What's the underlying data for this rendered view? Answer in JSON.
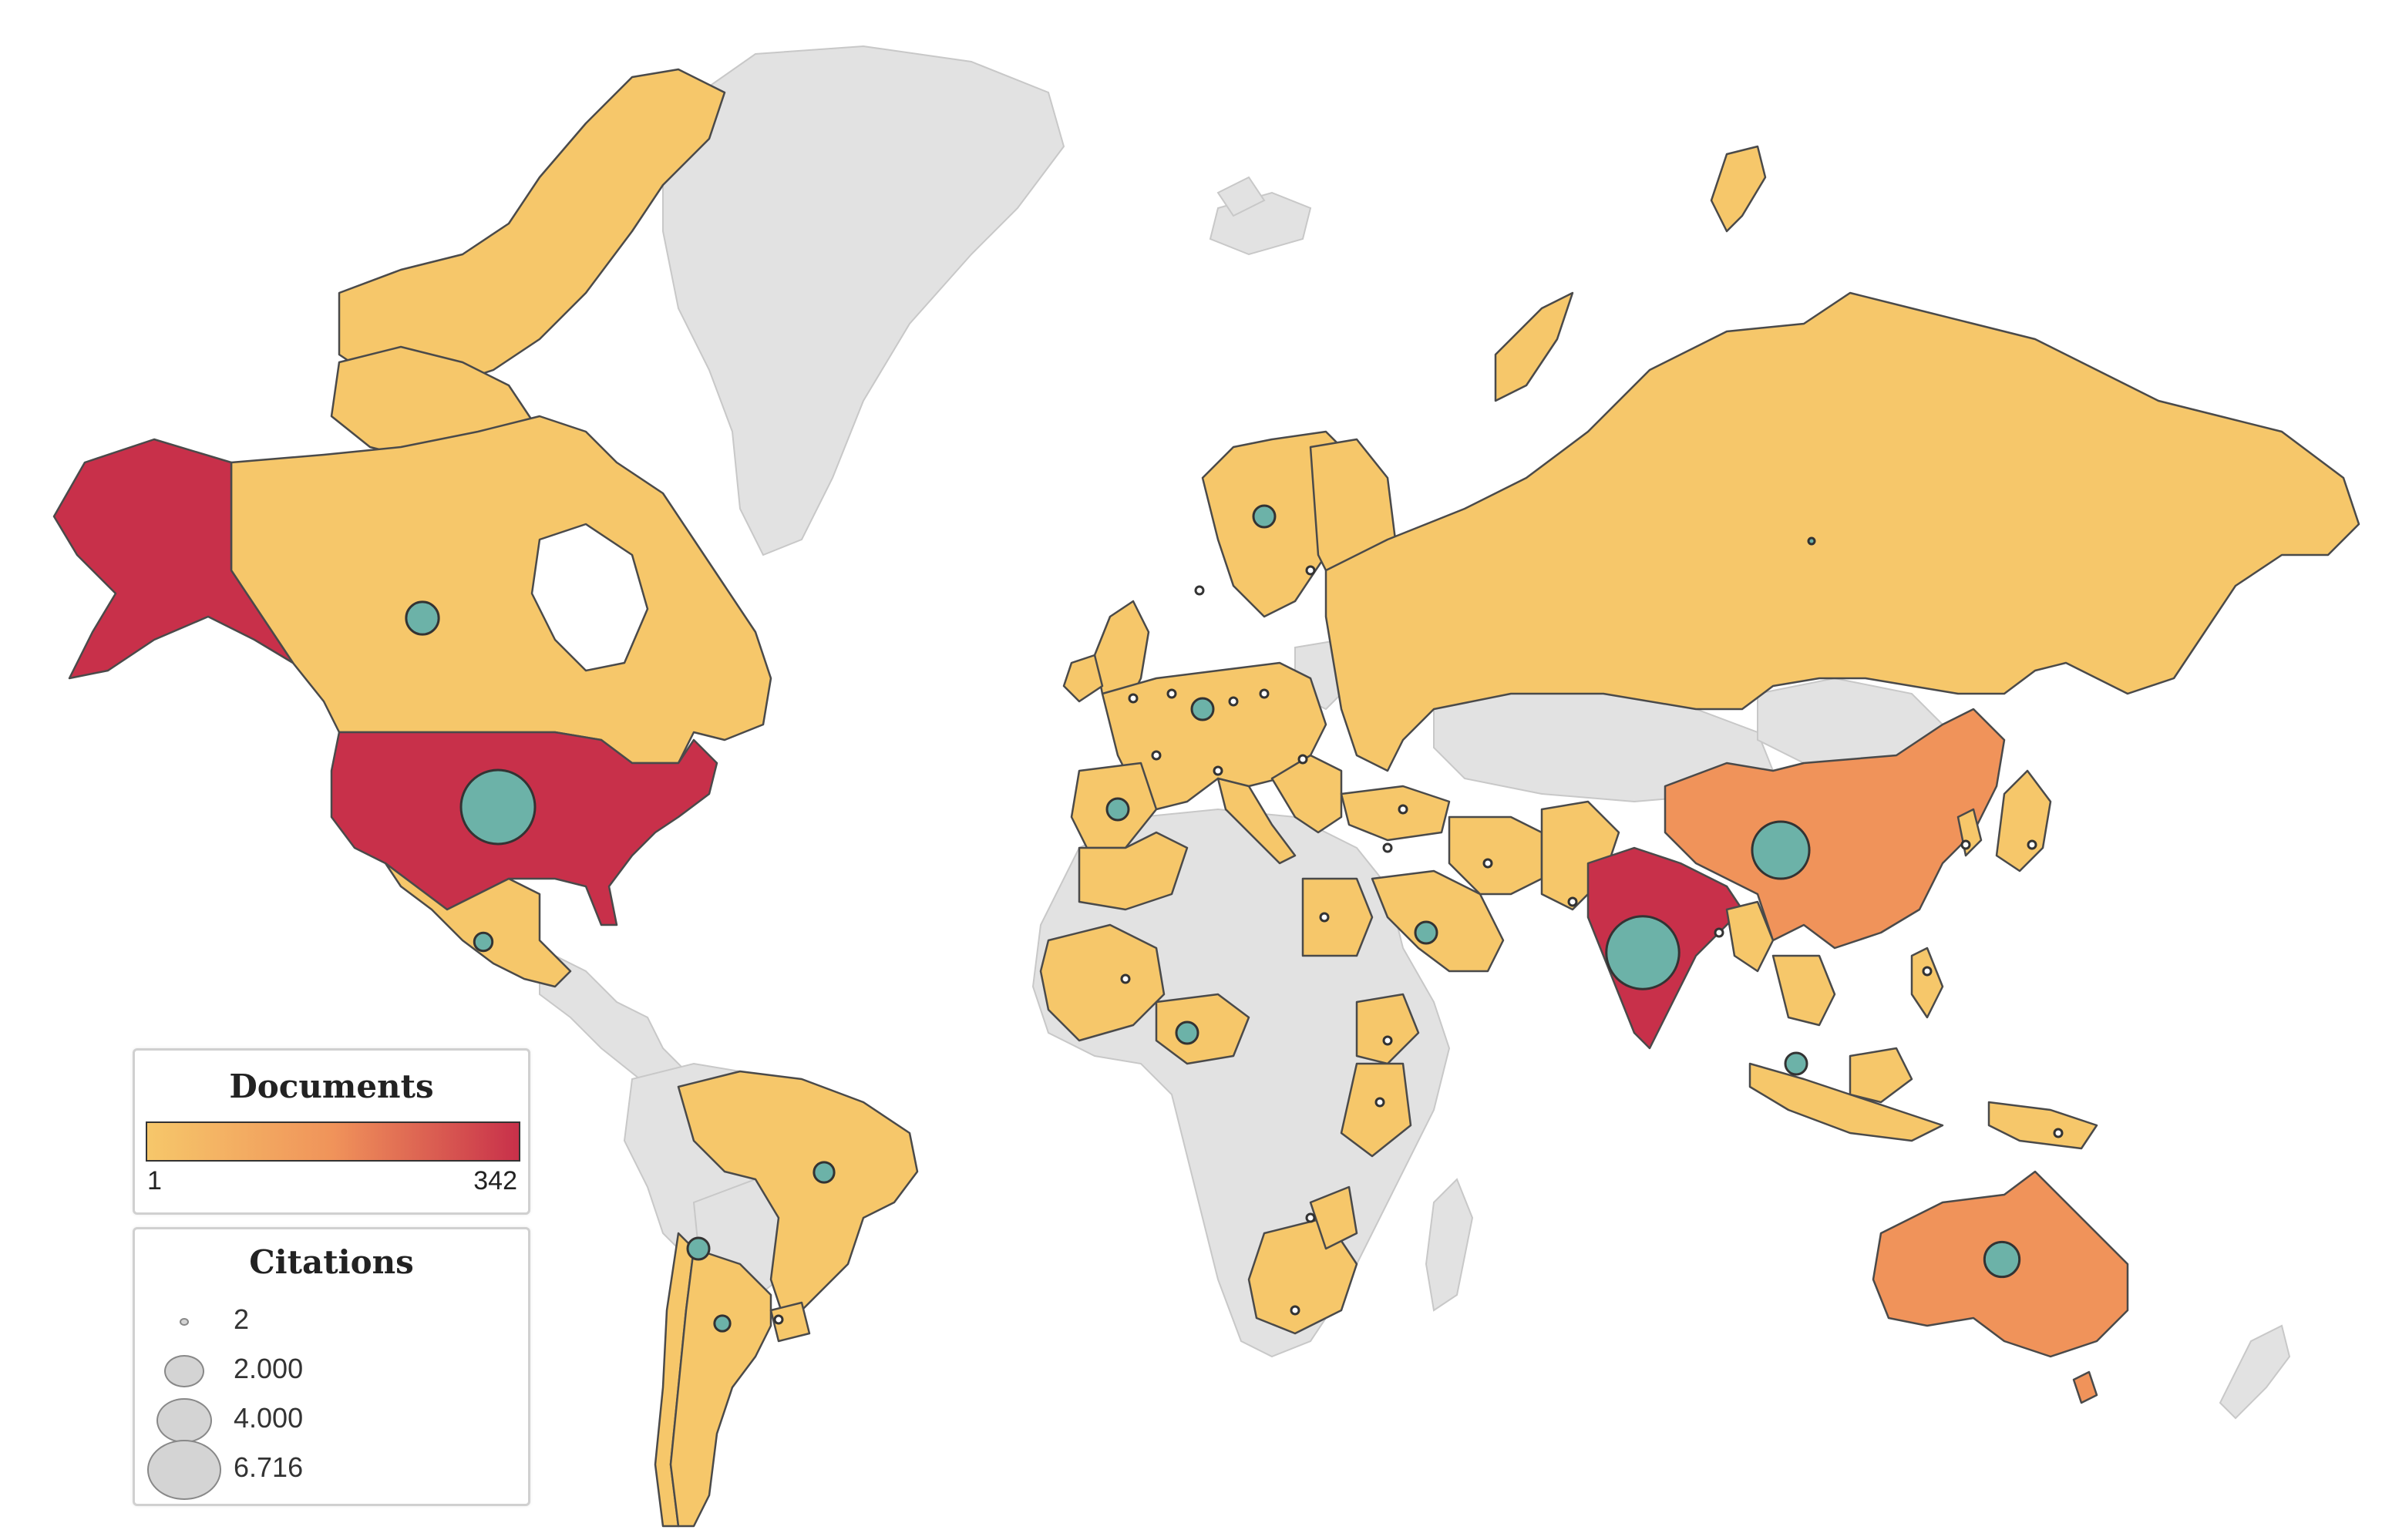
{
  "legend_documents": {
    "title": "Documents",
    "min_label": "1",
    "max_label": "342",
    "color_low": "#f6c76a",
    "color_mid": "#f0935a",
    "color_high": "#c8304a"
  },
  "legend_citations": {
    "title": "Citations",
    "items": [
      {
        "label": "2",
        "value": 2
      },
      {
        "label": "2.000",
        "value": 2000
      },
      {
        "label": "4.000",
        "value": 4000
      },
      {
        "label": "6.716",
        "value": 6716
      }
    ]
  },
  "colors": {
    "land_nodata": "#e2e2e2",
    "low": "#f6c76a",
    "mid": "#f0935a",
    "high": "#c8304a",
    "bubble": "#6cb2a8",
    "border": "#4a4a4a"
  },
  "countries": [
    {
      "name": "United States",
      "documents": 342,
      "citations": 6716
    },
    {
      "name": "India",
      "documents": 300,
      "citations": 6500
    },
    {
      "name": "China",
      "documents": 160,
      "citations": 4000
    },
    {
      "name": "Australia",
      "documents": 90,
      "citations": 1500
    },
    {
      "name": "Canada",
      "documents": 70,
      "citations": 1300
    },
    {
      "name": "Brazil",
      "documents": 20,
      "citations": 500
    },
    {
      "name": "Mexico",
      "documents": 15,
      "citations": 400
    },
    {
      "name": "Russia",
      "documents": 10,
      "citations": 2
    },
    {
      "name": "Argentina",
      "documents": 8,
      "citations": 300
    }
  ]
}
